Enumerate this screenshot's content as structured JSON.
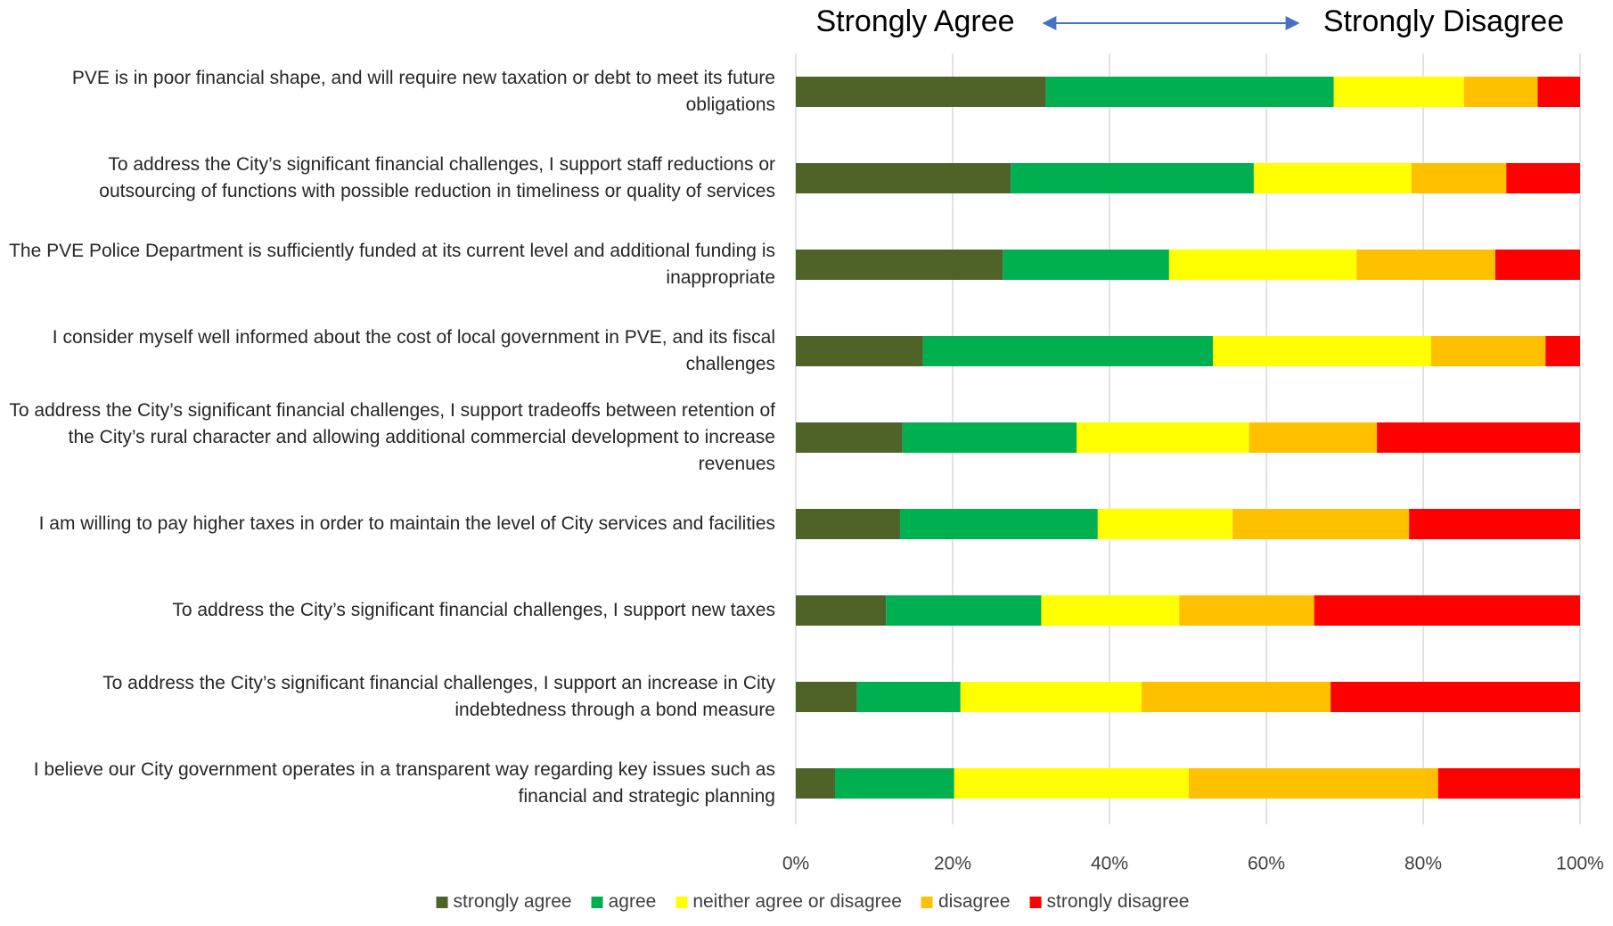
{
  "chart_data": {
    "type": "stacked_barh",
    "annotations": [
      "Strongly Agree",
      "Strongly Disagree"
    ],
    "categories": [
      "PVE is in poor financial shape, and will require new taxation or debt to meet its future obligations",
      "To address the City’s significant financial challenges, I support staff reductions or outsourcing of functions with possible reduction in timeliness or quality of services",
      "The PVE Police Department is sufficiently funded at its current level and additional funding is inappropriate",
      "I consider myself well informed about the cost of local government in PVE, and its fiscal challenges",
      "To address the City’s significant financial challenges, I support tradeoffs between retention of the City’s rural character and allowing additional commercial development to increase revenues",
      "I am willing to pay higher taxes in order to maintain the level of City services and facilities",
      "To address the City’s significant financial challenges, I support new taxes",
      "To address the City’s significant financial challenges, I support an increase in City indebtedness through a bond measure",
      "I believe our City government operates in a transparent way regarding key issues such as financial and strategic planning"
    ],
    "series": [
      {
        "name": "strongly agree",
        "color": "#4f6228",
        "values": [
          31.9,
          27.4,
          26.4,
          16.2,
          13.6,
          13.3,
          11.5,
          7.8,
          5.0
        ]
      },
      {
        "name": "agree",
        "color": "#00b050",
        "values": [
          36.7,
          31.0,
          21.2,
          37.0,
          22.2,
          25.2,
          19.8,
          13.2,
          15.2
        ]
      },
      {
        "name": "neither agree or disagree",
        "color": "#ffff00",
        "values": [
          16.6,
          20.1,
          23.9,
          27.8,
          22.0,
          17.2,
          17.6,
          23.1,
          29.9
        ]
      },
      {
        "name": "disagree",
        "color": "#ffc000",
        "values": [
          9.4,
          12.1,
          17.7,
          14.6,
          16.3,
          22.5,
          17.2,
          24.1,
          31.8
        ]
      },
      {
        "name": "strongly disagree",
        "color": "#ff0000",
        "values": [
          5.4,
          9.4,
          10.8,
          4.4,
          25.9,
          21.8,
          33.9,
          31.8,
          18.1
        ]
      }
    ],
    "xlim": [
      0,
      100
    ],
    "xticks": [
      {
        "value": 0,
        "label": "0%"
      },
      {
        "value": 20,
        "label": "20%"
      },
      {
        "value": 40,
        "label": "40%"
      },
      {
        "value": 60,
        "label": "60%"
      },
      {
        "value": 80,
        "label": "80%"
      },
      {
        "value": 100,
        "label": "100%"
      }
    ],
    "grid": true,
    "legend": "bottom"
  }
}
